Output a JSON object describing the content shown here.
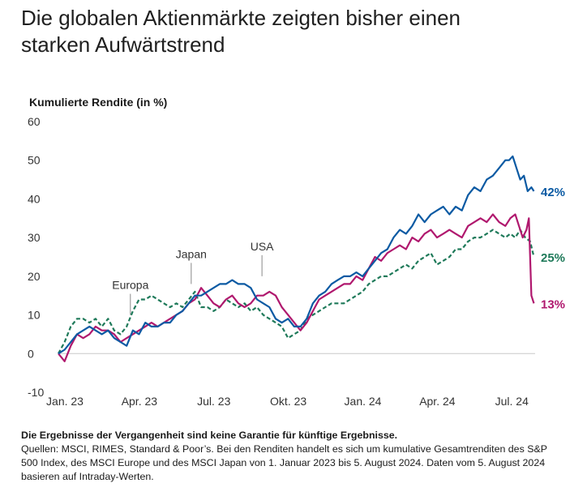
{
  "title_lines": [
    "Die globalen Aktienmärkte zeigten bisher einen",
    "starken Aufwärtstrend"
  ],
  "chart_data": {
    "type": "line",
    "ylabel": "Kumulierte Rendite (in %)",
    "ylim": [
      -10,
      60
    ],
    "yticks": [
      -10,
      0,
      10,
      20,
      30,
      40,
      50,
      60
    ],
    "xlim": [
      0,
      19.2
    ],
    "xticks": [
      {
        "label": "Jan. 23",
        "pos": 0
      },
      {
        "label": "Apr. 23",
        "pos": 3
      },
      {
        "label": "Jul. 23",
        "pos": 6
      },
      {
        "label": "Okt. 23",
        "pos": 9
      },
      {
        "label": "Jan. 24",
        "pos": 12
      },
      {
        "label": "Apr. 24",
        "pos": 15
      },
      {
        "label": "Jul. 24",
        "pos": 18
      }
    ],
    "annotations": [
      {
        "label": "Europa",
        "x": 2.9,
        "y": 10
      },
      {
        "label": "Japan",
        "x": 5.35,
        "y": 18
      },
      {
        "label": "USA",
        "x": 8.2,
        "y": 20
      }
    ],
    "series": [
      {
        "name": "USA",
        "color": "#0b5aa3",
        "dash": false,
        "end_label": "42%",
        "x": [
          0,
          0.25,
          0.5,
          0.75,
          1,
          1.25,
          1.5,
          1.75,
          2,
          2.25,
          2.5,
          2.75,
          3,
          3.25,
          3.5,
          3.75,
          4,
          4.25,
          4.5,
          4.75,
          5,
          5.25,
          5.5,
          5.75,
          6,
          6.25,
          6.5,
          6.75,
          7,
          7.25,
          7.5,
          7.75,
          8,
          8.25,
          8.5,
          8.75,
          9,
          9.25,
          9.5,
          9.75,
          10,
          10.25,
          10.5,
          10.75,
          11,
          11.25,
          11.5,
          11.75,
          12,
          12.25,
          12.5,
          12.75,
          13,
          13.25,
          13.5,
          13.75,
          14,
          14.25,
          14.5,
          14.75,
          15,
          15.25,
          15.5,
          15.75,
          16,
          16.25,
          16.5,
          16.75,
          17,
          17.25,
          17.5,
          17.75,
          18,
          18.15,
          18.3,
          18.45,
          18.6,
          18.75,
          18.9,
          19.05,
          19.15
        ],
        "values": [
          0,
          1,
          3,
          5,
          6,
          7,
          6,
          5,
          6,
          4,
          3,
          2,
          6,
          5,
          8,
          7,
          7,
          8,
          8,
          10,
          11,
          13,
          15,
          15,
          16,
          17,
          18,
          18,
          19,
          18,
          18,
          17,
          14,
          13,
          12,
          9,
          8,
          9,
          7,
          7,
          9,
          13,
          15,
          16,
          18,
          19,
          20,
          20,
          21,
          20,
          22,
          24,
          26,
          27,
          30,
          32,
          31,
          33,
          36,
          34,
          36,
          37,
          38,
          36,
          38,
          37,
          41,
          43,
          42,
          45,
          46,
          48,
          50,
          50,
          51,
          48,
          45,
          46,
          42,
          43,
          42
        ]
      },
      {
        "name": "Europa",
        "color": "#1f7a5a",
        "dash": true,
        "end_label": "25%",
        "x": [
          0,
          0.25,
          0.5,
          0.75,
          1,
          1.25,
          1.5,
          1.75,
          2,
          2.25,
          2.5,
          2.75,
          3,
          3.25,
          3.5,
          3.75,
          4,
          4.25,
          4.5,
          4.75,
          5,
          5.25,
          5.5,
          5.75,
          6,
          6.25,
          6.5,
          6.75,
          7,
          7.25,
          7.5,
          7.75,
          8,
          8.25,
          8.5,
          8.75,
          9,
          9.25,
          9.5,
          9.75,
          10,
          10.25,
          10.5,
          10.75,
          11,
          11.25,
          11.5,
          11.75,
          12,
          12.25,
          12.5,
          12.75,
          13,
          13.25,
          13.5,
          13.75,
          14,
          14.25,
          14.5,
          14.75,
          15,
          15.25,
          15.5,
          15.75,
          16,
          16.25,
          16.5,
          16.75,
          17,
          17.25,
          17.5,
          17.75,
          18,
          18.2,
          18.4,
          18.6,
          18.8,
          19.0,
          19.15
        ],
        "values": [
          0,
          3,
          7,
          9,
          9,
          8,
          9,
          7,
          9,
          6,
          5,
          7,
          11,
          14,
          14,
          15,
          14,
          13,
          12,
          13,
          12,
          14,
          16,
          12,
          12,
          11,
          12,
          14,
          13,
          12,
          13,
          11,
          12,
          10,
          9,
          8,
          7,
          4,
          5,
          6,
          9,
          10,
          11,
          12,
          13,
          13,
          13,
          14,
          15,
          16,
          18,
          19,
          20,
          20,
          21,
          22,
          23,
          22,
          24,
          25,
          26,
          23,
          24,
          25,
          27,
          27,
          29,
          30,
          30,
          31,
          32,
          31,
          30,
          31,
          30,
          32,
          30,
          29,
          25
        ]
      },
      {
        "name": "Japan",
        "color": "#b0186e",
        "dash": false,
        "end_label": "13%",
        "x": [
          0,
          0.25,
          0.5,
          0.75,
          1,
          1.25,
          1.5,
          1.75,
          2,
          2.25,
          2.5,
          2.75,
          3,
          3.25,
          3.5,
          3.75,
          4,
          4.25,
          4.5,
          4.75,
          5,
          5.25,
          5.5,
          5.75,
          6,
          6.25,
          6.5,
          6.75,
          7,
          7.25,
          7.5,
          7.75,
          8,
          8.25,
          8.5,
          8.75,
          9,
          9.25,
          9.5,
          9.75,
          10,
          10.25,
          10.5,
          10.75,
          11,
          11.25,
          11.5,
          11.75,
          12,
          12.25,
          12.5,
          12.75,
          13,
          13.25,
          13.5,
          13.75,
          14,
          14.25,
          14.5,
          14.75,
          15,
          15.25,
          15.5,
          15.75,
          16,
          16.25,
          16.5,
          16.75,
          17,
          17.25,
          17.5,
          17.75,
          18,
          18.2,
          18.4,
          18.55,
          18.7,
          18.85,
          18.95,
          19.05,
          19.15
        ],
        "values": [
          0,
          -2,
          2,
          5,
          4,
          5,
          7,
          6,
          6,
          5,
          3,
          4,
          5,
          6,
          7,
          8,
          7,
          8,
          9,
          10,
          11,
          13,
          14,
          17,
          15,
          13,
          12,
          14,
          15,
          13,
          12,
          13,
          15,
          15,
          16,
          15,
          12,
          10,
          8,
          6,
          8,
          11,
          14,
          15,
          16,
          17,
          18,
          18,
          20,
          19,
          22,
          25,
          24,
          26,
          27,
          28,
          27,
          30,
          29,
          31,
          32,
          30,
          31,
          32,
          31,
          30,
          33,
          34,
          35,
          34,
          36,
          34,
          33,
          35,
          36,
          33,
          30,
          32,
          35,
          15,
          13
        ]
      }
    ]
  },
  "footnote": {
    "disclaimer": "Die Ergebnisse der Vergangenheit sind keine Garantie für künftige Ergebnisse.",
    "source_lines": [
      "Quellen: MSCI, RIMES, Standard & Poor’s. Bei den Renditen handelt es sich um kumulative Gesamtrenditen des S&P",
      "500 Index, des MSCI Europe und des MSCI Japan von 1. Januar 2023 bis 5. August 2024. Daten vom 5. August 2024",
      "basieren auf Intraday-Werten."
    ]
  }
}
